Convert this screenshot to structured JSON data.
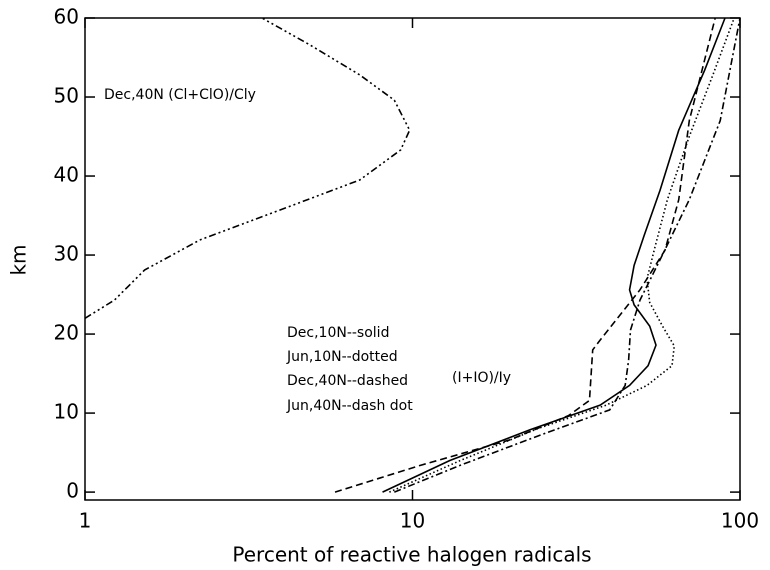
{
  "chart_data": {
    "type": "line",
    "xlabel": "Percent of reactive halogen radicals",
    "ylabel": "km",
    "xscale": "log",
    "xlim": [
      1,
      100
    ],
    "ylim": [
      -1,
      60
    ],
    "xticks": [
      1,
      10,
      100
    ],
    "yticks": [
      0,
      10,
      20,
      30,
      40,
      50,
      60
    ],
    "annotations": [
      "(I+IO)/Iy"
    ],
    "series": [
      {
        "name": "Dec,10N--solid",
        "color": "#000000",
        "style": "solid",
        "x": [
          8.1,
          13,
          22.9,
          37.4,
          46,
          52.4,
          55.4,
          53,
          47.5,
          46,
          47.5,
          51,
          57,
          65,
          78,
          90
        ],
        "values": [
          0,
          4,
          7.9,
          11,
          13.5,
          16,
          18.6,
          21,
          23.7,
          25.6,
          28.7,
          32.5,
          38.2,
          45.8,
          53.4,
          60
        ]
      },
      {
        "name": "Jun,10N--dotted",
        "color": "#000000",
        "style": "dotted",
        "x": [
          8.5,
          14,
          24,
          39,
          52,
          62,
          63,
          58,
          53,
          52,
          55,
          60,
          70,
          83,
          96
        ],
        "values": [
          0,
          4,
          8,
          11,
          13.5,
          16,
          18.5,
          21,
          24,
          27,
          31,
          37,
          45,
          53,
          60
        ]
      },
      {
        "name": "Dec,40N--dashed",
        "color": "#000000",
        "style": "dashed",
        "x": [
          5.8,
          10.6,
          19.8,
          30,
          34.7,
          35.5,
          37.5,
          49.5,
          59,
          65,
          70,
          84
        ],
        "values": [
          0,
          3.4,
          6.6,
          9.7,
          11.6,
          18,
          19.3,
          25.6,
          30.6,
          37,
          47,
          60
        ]
      },
      {
        "name": "Jun,40N--dash dot",
        "color": "#000000",
        "style": "dashdot",
        "x": [
          8.8,
          14,
          24.5,
          40,
          44.6,
          45.7,
          46.3,
          49.5,
          57,
          70,
          87,
          100
        ],
        "values": [
          0,
          3.4,
          7.2,
          10.4,
          13.5,
          16.7,
          20.5,
          24.3,
          29.4,
          37,
          47,
          60
        ]
      },
      {
        "name": "Dec,40N (Cl+ClO)/Cly",
        "color": "#000000",
        "style": "dashdotdotdot",
        "x": [
          1,
          1.23,
          1.52,
          2.24,
          3.94,
          6.9,
          9.2,
          9.8,
          8.8,
          6.9,
          4.86,
          3.47
        ],
        "values": [
          22,
          24.3,
          28.1,
          31.9,
          35.7,
          39.5,
          43.3,
          45.8,
          49.6,
          52.8,
          56.6,
          60
        ]
      }
    ]
  }
}
